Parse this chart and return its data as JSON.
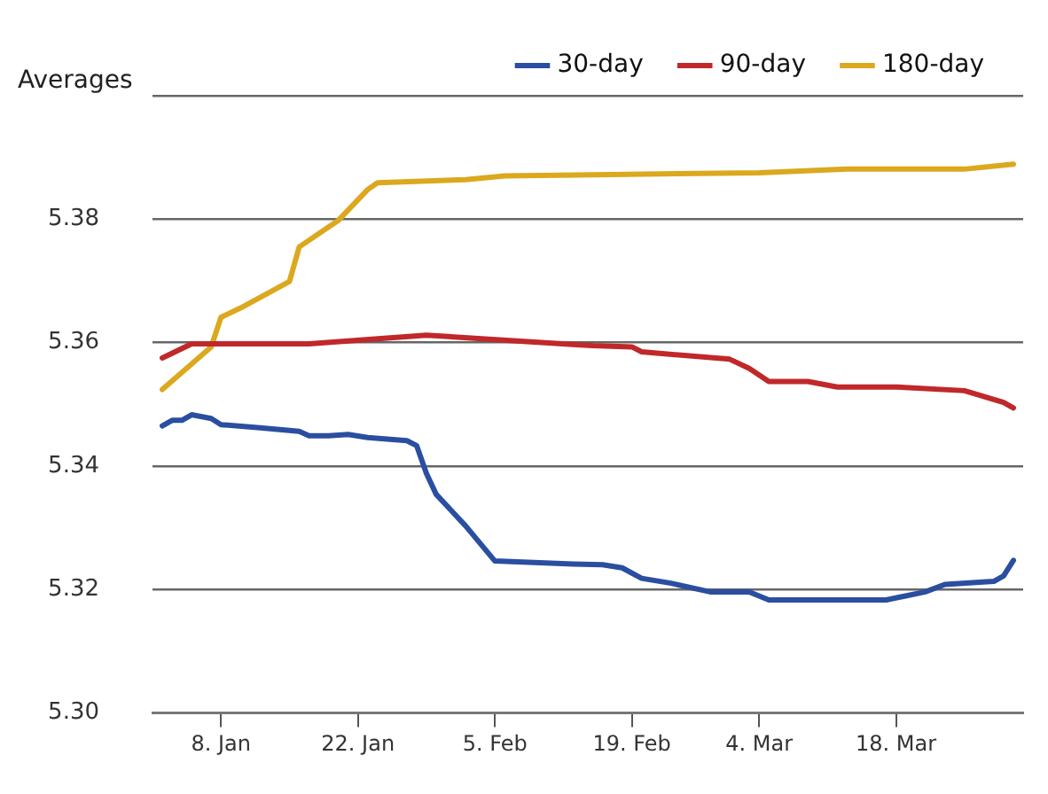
{
  "chart_data": {
    "type": "line",
    "ylabel": "Averages",
    "xlim": [
      "--01-01",
      "--03-31"
    ],
    "xticks": [
      {
        "value": "--01-08",
        "label": "8. Jan"
      },
      {
        "value": "--01-22",
        "label": "22. Jan"
      },
      {
        "value": "--02-05",
        "label": "5. Feb"
      },
      {
        "value": "--02-19",
        "label": "19. Feb"
      },
      {
        "value": "--03-04",
        "label": "4. Mar"
      },
      {
        "value": "--03-18",
        "label": "18. Mar"
      }
    ],
    "ylim": [
      5.3,
      5.4
    ],
    "yticks": [
      {
        "value": 5.3,
        "label": "5.30"
      },
      {
        "value": 5.32,
        "label": "5.32"
      },
      {
        "value": 5.34,
        "label": "5.34"
      },
      {
        "value": 5.36,
        "label": "5.36"
      },
      {
        "value": 5.38,
        "label": "5.38"
      },
      {
        "value": 5.4,
        "label": null
      }
    ],
    "grid": "y",
    "legend": "top right",
    "marker": "none",
    "line_style": "solid",
    "series": [
      {
        "name": "30-day",
        "color": "#2a4ea0",
        "x": [
          "--01-02",
          "--01-03",
          "--01-04",
          "--01-05",
          "--01-07",
          "--01-08",
          "--01-12",
          "--01-16",
          "--01-17",
          "--01-19",
          "--01-21",
          "--01-23",
          "--01-27",
          "--01-28",
          "--01-29",
          "--01-30",
          "--02-02",
          "--02-05",
          "--02-13",
          "--02-16",
          "--02-18",
          "--02-20",
          "--02-23",
          "--02-27",
          "--03-03",
          "--03-05",
          "--03-17",
          "--03-21",
          "--03-23",
          "--03-28",
          "--03-29",
          "--03-30"
        ],
        "values": [
          5.3465,
          5.3474,
          5.3474,
          5.3483,
          5.3477,
          5.3467,
          5.3462,
          5.3456,
          5.3449,
          5.3449,
          5.3451,
          5.3446,
          5.3441,
          5.3433,
          5.3388,
          5.3354,
          5.3303,
          5.3246,
          5.3241,
          5.324,
          5.3235,
          5.3218,
          5.321,
          5.3196,
          5.3196,
          5.3183,
          5.3183,
          5.3196,
          5.3208,
          5.3213,
          5.3222,
          5.3247
        ]
      },
      {
        "name": "90-day",
        "color": "#c0282a",
        "x": [
          "--01-02",
          "--01-05",
          "--01-17",
          "--01-29",
          "--02-04",
          "--02-13",
          "--02-15",
          "--02-19",
          "--02-20",
          "--03-01",
          "--03-03",
          "--03-05",
          "--03-09",
          "--03-12",
          "--03-18",
          "--03-25",
          "--03-29",
          "--03-30"
        ],
        "values": [
          5.3575,
          5.3598,
          5.3598,
          5.3612,
          5.3606,
          5.3597,
          5.3595,
          5.3593,
          5.3585,
          5.3573,
          5.3558,
          5.3537,
          5.3537,
          5.3528,
          5.3528,
          5.3522,
          5.3503,
          5.3494
        ]
      },
      {
        "name": "180-day",
        "color": "#dba81e",
        "x": [
          "--01-02",
          "--01-07",
          "--01-08",
          "--01-10",
          "--01-15",
          "--01-16",
          "--01-20",
          "--01-23",
          "--01-24",
          "--02-02",
          "--02-06",
          "--02-15",
          "--03-04",
          "--03-13",
          "--03-25",
          "--03-30"
        ],
        "values": [
          5.3524,
          5.3593,
          5.3641,
          5.3656,
          5.3699,
          5.3755,
          5.3798,
          5.3848,
          5.3859,
          5.3864,
          5.387,
          5.3872,
          5.3875,
          5.3881,
          5.3881,
          5.3889
        ]
      }
    ]
  }
}
